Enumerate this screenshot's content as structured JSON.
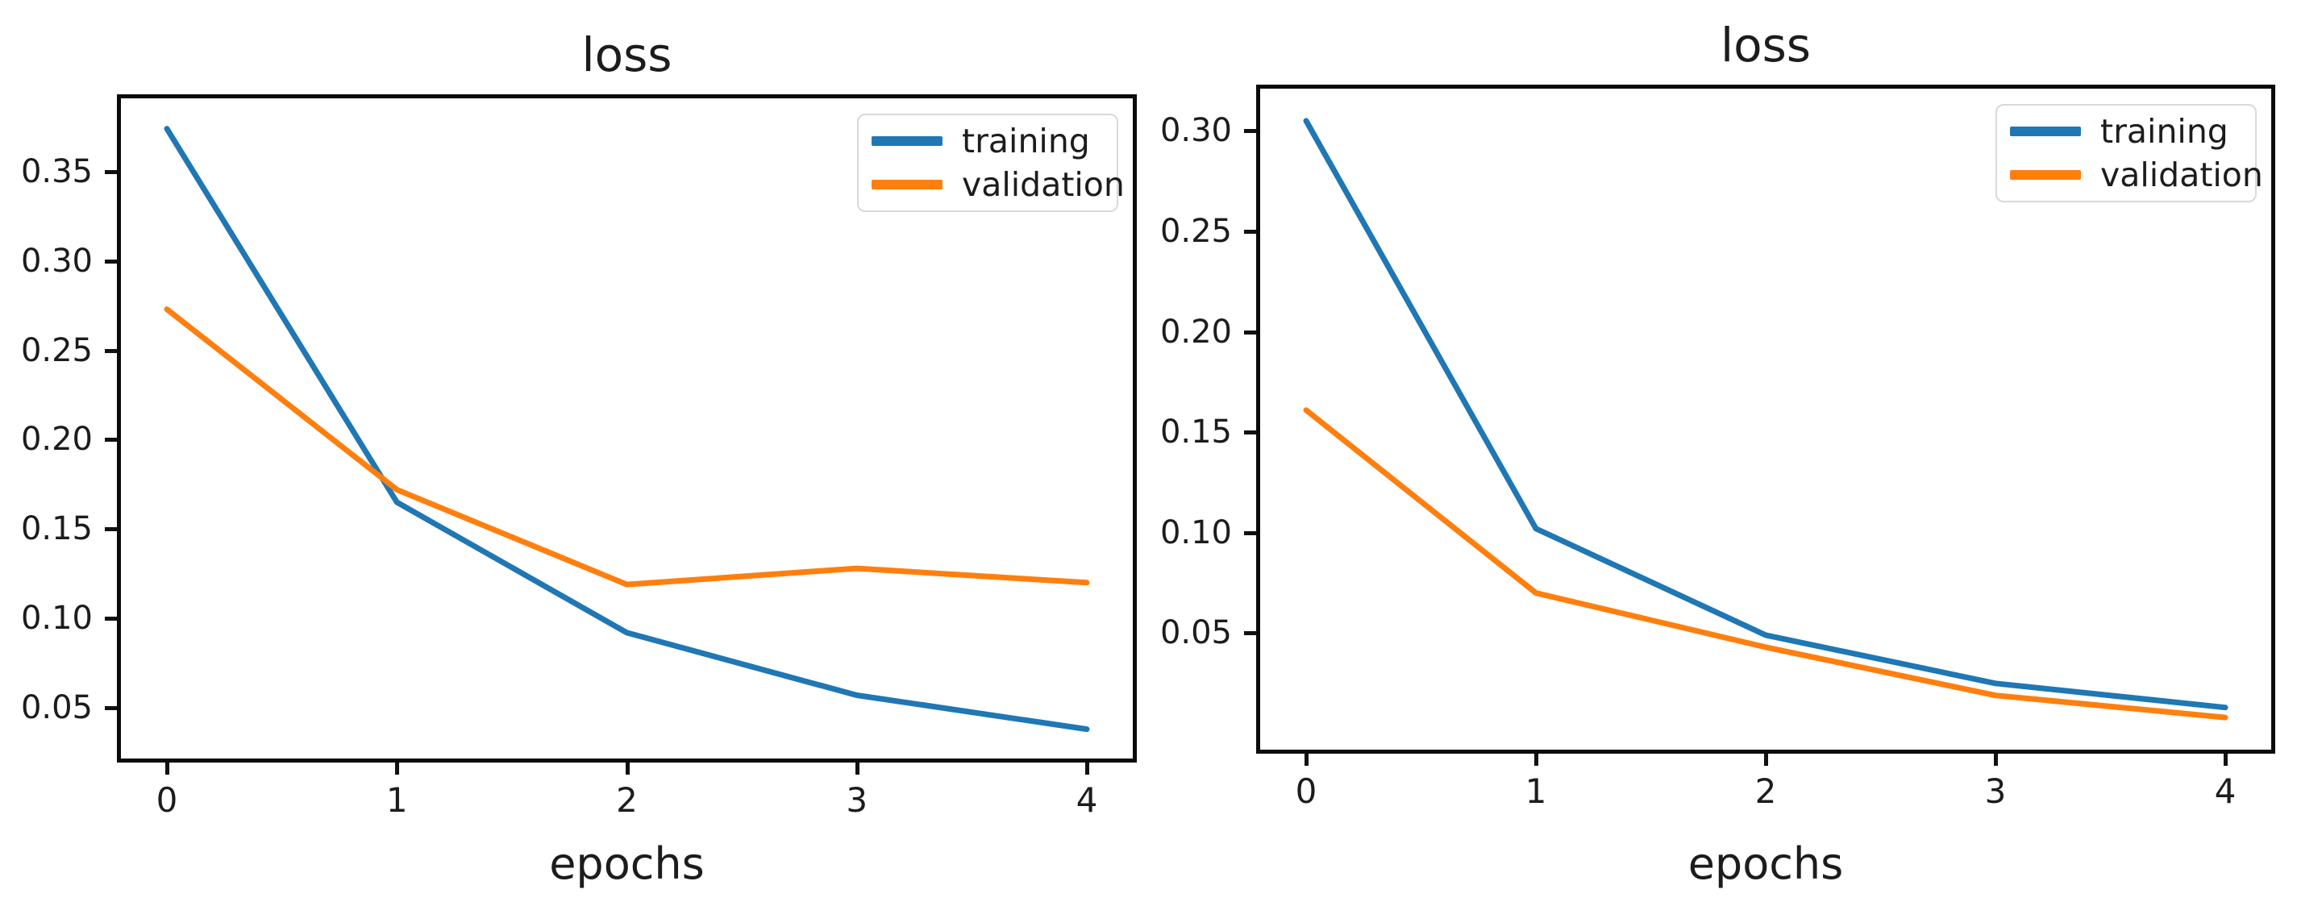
{
  "figure": {
    "background": "#ffffff"
  },
  "chart_data": [
    {
      "type": "line",
      "title": "loss",
      "xlabel": "epochs",
      "ylabel": "",
      "x": [
        0,
        1,
        2,
        3,
        4
      ],
      "xtick_labels": [
        "0",
        "1",
        "2",
        "3",
        "4"
      ],
      "ytick_labels": [
        "0.05",
        "0.10",
        "0.15",
        "0.20",
        "0.25",
        "0.30",
        "0.35"
      ],
      "xlim": [
        -0.2,
        4.2
      ],
      "ylim": [
        0.0216,
        0.391
      ],
      "grid": false,
      "legend_position": "upper-right",
      "series": [
        {
          "name": "training",
          "color": "#1f77b4",
          "values": [
            0.374,
            0.165,
            0.092,
            0.057,
            0.038
          ]
        },
        {
          "name": "validation",
          "color": "#ff7f0e",
          "values": [
            0.273,
            0.172,
            0.119,
            0.128,
            0.12
          ]
        }
      ]
    },
    {
      "type": "line",
      "title": "loss",
      "xlabel": "epochs",
      "ylabel": "",
      "x": [
        0,
        1,
        2,
        3,
        4
      ],
      "xtick_labels": [
        "0",
        "1",
        "2",
        "3",
        "4"
      ],
      "ytick_labels": [
        "0.05",
        "0.10",
        "0.15",
        "0.20",
        "0.25",
        "0.30"
      ],
      "xlim": [
        -0.2,
        4.2
      ],
      "ylim": [
        -0.008,
        0.321
      ],
      "grid": false,
      "legend_position": "upper-right",
      "series": [
        {
          "name": "training",
          "color": "#1f77b4",
          "values": [
            0.305,
            0.102,
            0.049,
            0.025,
            0.013
          ]
        },
        {
          "name": "validation",
          "color": "#ff7f0e",
          "values": [
            0.161,
            0.07,
            0.043,
            0.019,
            0.008
          ]
        }
      ]
    }
  ]
}
